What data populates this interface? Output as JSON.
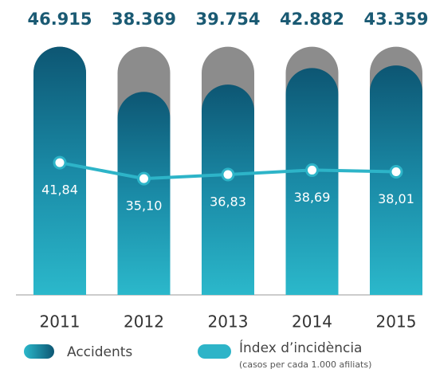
{
  "chart_data": {
    "type": "bar",
    "categories": [
      "2011",
      "2012",
      "2013",
      "2014",
      "2015"
    ],
    "ylim": [
      0,
      47000
    ],
    "y2lim": [
      -14,
      91
    ],
    "series": [
      {
        "name": "Accidents",
        "color": "#1f8fab",
        "values": [
          46915,
          38369,
          39754,
          42882,
          43359
        ],
        "value_labels": [
          "46.915",
          "38.369",
          "39.754",
          "42.882",
          "43.359"
        ]
      },
      {
        "name": "Índex d’incidència",
        "color": "#2db4c8",
        "axis": "y2",
        "values": [
          41.84,
          35.1,
          36.83,
          38.69,
          38.01
        ],
        "value_labels": [
          "41,84",
          "35,10",
          "36,83",
          "38,69",
          "38,01"
        ]
      }
    ],
    "legend_note": "(casos per cada 1.000 afiliats)"
  }
}
